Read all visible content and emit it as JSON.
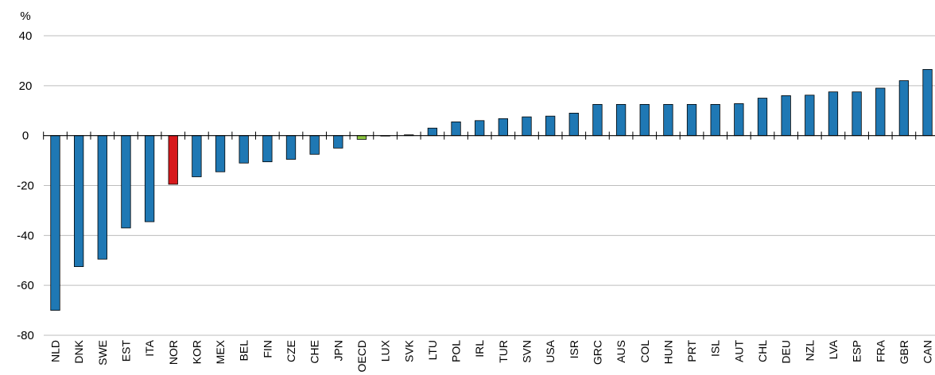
{
  "chart_data": {
    "type": "bar",
    "title": "",
    "xlabel": "",
    "ylabel": "%",
    "ylim": [
      -80,
      40
    ],
    "yticks": [
      40,
      20,
      0,
      -20,
      -40,
      -60,
      -80
    ],
    "grid": true,
    "categories": [
      "NLD",
      "DNK",
      "SWE",
      "EST",
      "ITA",
      "NOR",
      "KOR",
      "MEX",
      "BEL",
      "FIN",
      "CZE",
      "CHE",
      "JPN",
      "OECD",
      "LUX",
      "SVK",
      "LTU",
      "POL",
      "IRL",
      "TUR",
      "SVN",
      "USA",
      "ISR",
      "GRC",
      "AUS",
      "COL",
      "HUN",
      "PRT",
      "ISL",
      "AUT",
      "CHL",
      "DEU",
      "NZL",
      "LVA",
      "ESP",
      "FRA",
      "GBR",
      "CAN"
    ],
    "values": [
      -70,
      -52.5,
      -49.5,
      -37,
      -34.5,
      -19.5,
      -16.5,
      -14.5,
      -11,
      -10.5,
      -9.5,
      -7.5,
      -5,
      -1.5,
      0,
      0.3,
      3,
      5.5,
      6,
      6.8,
      7.5,
      7.8,
      9,
      12.5,
      12.5,
      12.5,
      12.5,
      12.5,
      12.5,
      12.8,
      15,
      16,
      16.2,
      17.5,
      17.5,
      19,
      22,
      26.5
    ],
    "colors": {
      "default": "#1f78b4",
      "highlight": "#d7191c",
      "aggregate": "#8cc63f",
      "stroke": "#000000",
      "grid": "#bdbdbd"
    },
    "highlight_category": "NOR",
    "aggregate_category": "OECD"
  }
}
